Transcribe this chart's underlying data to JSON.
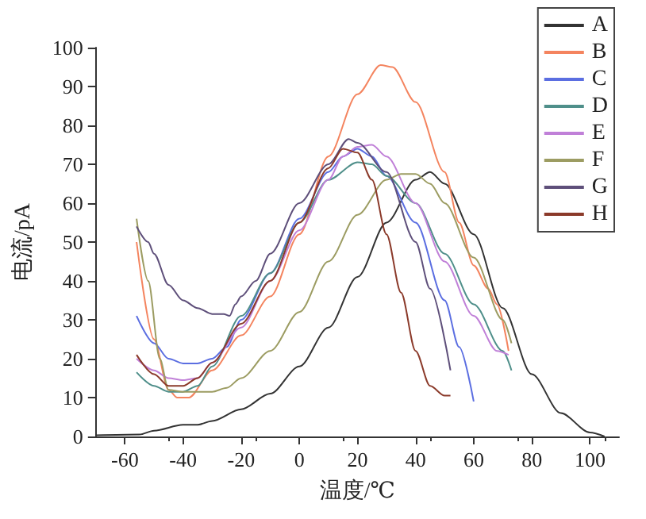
{
  "chart_data": {
    "type": "line",
    "xlabel": "温度/℃",
    "ylabel": "电流/pA",
    "xlim": [
      -70,
      110
    ],
    "xticks": [
      -60,
      -40,
      -20,
      0,
      20,
      40,
      60,
      80,
      100
    ],
    "ylim": [
      0,
      100
    ],
    "yticks": [
      0,
      10,
      20,
      30,
      40,
      50,
      60,
      70,
      80,
      90,
      100
    ],
    "grid": false,
    "legend": "top right",
    "marker": "none",
    "line_style": "solid",
    "series": [
      {
        "name": "A",
        "color": "#333333",
        "x": [
          -70,
          -55,
          -50,
          -40,
          -35,
          -30,
          -20,
          -10,
          0,
          10,
          20,
          30,
          40,
          45,
          50,
          60,
          70,
          80,
          90,
          100,
          105
        ],
        "values": [
          0.3,
          0.5,
          1.5,
          3,
          3,
          4,
          7,
          11,
          18,
          28,
          41,
          55,
          66,
          68,
          65,
          52,
          33,
          16,
          6,
          1,
          0
        ]
      },
      {
        "name": "B",
        "color": "#f4845f",
        "x": [
          -56,
          -50,
          -45,
          -42,
          -38,
          -30,
          -20,
          -10,
          0,
          10,
          20,
          28,
          32,
          40,
          50,
          55,
          60,
          65,
          68,
          72
        ],
        "values": [
          50,
          25,
          12,
          10,
          10,
          17,
          26,
          36,
          52,
          72,
          88,
          95.5,
          95,
          86,
          68,
          55,
          44,
          38,
          34,
          22
        ]
      },
      {
        "name": "C",
        "color": "#5b6ee1",
        "x": [
          -56,
          -50,
          -45,
          -40,
          -35,
          -30,
          -25,
          -20,
          -10,
          0,
          10,
          15,
          20,
          25,
          30,
          40,
          50,
          55,
          60
        ],
        "values": [
          31,
          24,
          20,
          18.8,
          18.8,
          20,
          23,
          30,
          42,
          56,
          68,
          72,
          74,
          72,
          67,
          55,
          35,
          23,
          9
        ]
      },
      {
        "name": "D",
        "color": "#4f8f8a",
        "x": [
          -56,
          -50,
          -45,
          -40,
          -35,
          -30,
          -20,
          -10,
          0,
          10,
          20,
          25,
          30,
          40,
          50,
          60,
          70,
          73
        ],
        "values": [
          16.5,
          13,
          11.5,
          11.5,
          13,
          18,
          31,
          42,
          55,
          66,
          70.5,
          70,
          67,
          60,
          47,
          34,
          22,
          17
        ]
      },
      {
        "name": "E",
        "color": "#c080d8",
        "x": [
          -56,
          -50,
          -45,
          -40,
          -35,
          -30,
          -20,
          -10,
          0,
          10,
          15,
          20,
          25,
          30,
          40,
          50,
          60,
          68,
          72
        ],
        "values": [
          20,
          17,
          15,
          14.5,
          15,
          19,
          28,
          40,
          53,
          66,
          72,
          74.5,
          75,
          72,
          60,
          45,
          31,
          22,
          21
        ]
      },
      {
        "name": "F",
        "color": "#9c9c62",
        "x": [
          -56,
          -52,
          -48,
          -45,
          -40,
          -30,
          -25,
          -20,
          -10,
          0,
          10,
          20,
          30,
          35,
          40,
          45,
          50,
          60,
          70,
          73
        ],
        "values": [
          56,
          40,
          20,
          12,
          11.5,
          11.5,
          12.5,
          15,
          22,
          32,
          45,
          57,
          66,
          67.5,
          67.5,
          65,
          60,
          46,
          30,
          24
        ]
      },
      {
        "name": "G",
        "color": "#5e4f7a",
        "x": [
          -56,
          -52,
          -50,
          -45,
          -40,
          -35,
          -30,
          -26,
          -24,
          -22,
          -20,
          -15,
          -10,
          0,
          10,
          17,
          20,
          30,
          40,
          45,
          52
        ],
        "values": [
          54,
          50,
          47,
          39,
          35,
          33,
          31.5,
          31.5,
          31,
          34,
          36,
          40,
          47,
          60,
          70,
          76.5,
          75.5,
          68,
          50,
          38,
          17
        ]
      },
      {
        "name": "H",
        "color": "#8b3a2a",
        "x": [
          -56,
          -50,
          -45,
          -40,
          -35,
          -30,
          -20,
          -10,
          0,
          10,
          15,
          20,
          25,
          30,
          35,
          40,
          45,
          50,
          52
        ],
        "values": [
          21,
          16,
          13,
          13,
          15,
          19,
          29,
          40,
          55,
          69,
          74,
          73,
          66,
          52,
          37,
          22,
          13,
          10.5,
          10.5
        ]
      }
    ]
  }
}
